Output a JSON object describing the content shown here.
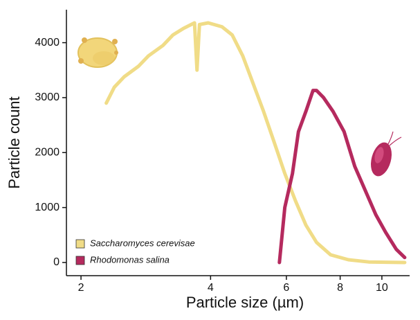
{
  "chart_data": {
    "type": "line",
    "xlabel": "Particle size (µm)",
    "ylabel": "Particle count",
    "xscale": "log",
    "xlim": [
      1.85,
      11.6
    ],
    "xticks": [
      2,
      4,
      6,
      8,
      10
    ],
    "ylim": [
      -240,
      4600
    ],
    "yticks": [
      0,
      1000,
      2000,
      3000,
      4000
    ],
    "legend": "lower left",
    "series": [
      {
        "name": "Saccharomyces cerevisae",
        "color": "#f0dc87",
        "x": [
          2.29,
          2.39,
          2.52,
          2.72,
          2.87,
          3.1,
          3.27,
          3.46,
          3.67,
          3.72,
          3.77,
          3.95,
          4.25,
          4.49,
          4.75,
          5.02,
          5.31,
          5.62,
          5.95,
          6.3,
          6.66,
          7.05,
          7.6,
          8.36,
          9.32,
          11.3
        ],
        "values": [
          2900,
          3190,
          3380,
          3570,
          3760,
          3950,
          4140,
          4260,
          4360,
          3500,
          4330,
          4360,
          4290,
          4140,
          3760,
          3260,
          2750,
          2190,
          1620,
          1120,
          680,
          365,
          140,
          50,
          10,
          0
        ]
      },
      {
        "name": "Rhodomonas salina",
        "color": "#b52a5e",
        "x": [
          5.78,
          5.95,
          6.2,
          6.4,
          6.66,
          6.92,
          7.05,
          7.32,
          7.7,
          8.17,
          8.65,
          9.15,
          9.68,
          10.2,
          10.8,
          11.3
        ],
        "values": [
          0,
          1000,
          1620,
          2380,
          2750,
          3130,
          3130,
          3000,
          2750,
          2380,
          1750,
          1310,
          870,
          550,
          240,
          90
        ]
      }
    ]
  }
}
